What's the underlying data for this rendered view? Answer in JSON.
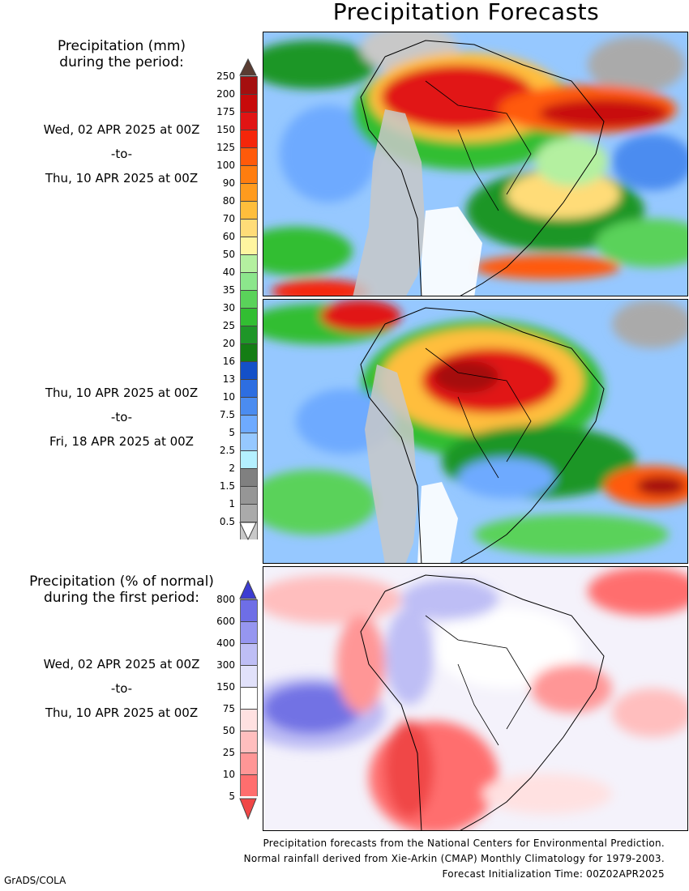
{
  "title": "Precipitation Forecasts",
  "legend_mm": {
    "title_line1": "Precipitation (mm)",
    "title_line2": "during the period:",
    "levels": [
      "250",
      "200",
      "175",
      "150",
      "125",
      "100",
      "90",
      "80",
      "70",
      "60",
      "50",
      "40",
      "35",
      "30",
      "25",
      "20",
      "16",
      "13",
      "10",
      "7.5",
      "5",
      "2.5",
      "2",
      "1.5",
      "1",
      "0.5"
    ],
    "colors": [
      "#8b1a10",
      "#a50f0f",
      "#c80a0a",
      "#e11414",
      "#f5260a",
      "#ff5a0a",
      "#ff7d0f",
      "#ff9b1e",
      "#ffbe3c",
      "#ffdc78",
      "#fff5a0",
      "#b4f0a0",
      "#8ce68c",
      "#5ad25a",
      "#32be32",
      "#1e9628",
      "#147d14",
      "#1450c8",
      "#2d6ee1",
      "#4b8cf0",
      "#6eaaff",
      "#96c8ff",
      "#b4f0ff",
      "#808080",
      "#969696",
      "#aaaaaa",
      "#c8c8c8"
    ],
    "top_arrow_color": "#5a3c32"
  },
  "period1": {
    "start": "Wed, 02 APR 2025 at 00Z",
    "sep": "-to-",
    "end": "Thu, 10 APR 2025 at 00Z"
  },
  "period2": {
    "start": "Thu, 10 APR 2025 at 00Z",
    "sep": "-to-",
    "end": "Fri, 18 APR 2025 at 00Z"
  },
  "legend_pct": {
    "title_line1": "Precipitation (% of normal)",
    "title_line2": "during the first period:",
    "levels": [
      "800",
      "600",
      "400",
      "300",
      "150",
      "75",
      "50",
      "25",
      "10",
      "5"
    ],
    "colors": [
      "#3c3cd2",
      "#6e6ee6",
      "#9696f0",
      "#bebef5",
      "#e1e1fa",
      "#ffffff",
      "#ffe1e1",
      "#ffbebe",
      "#ff9696",
      "#ff6e6e",
      "#f04646"
    ]
  },
  "period3": {
    "start": "Wed, 02 APR 2025 at 00Z",
    "sep": "-to-",
    "end": "Thu, 10 APR 2025 at 00Z"
  },
  "footer": {
    "line1": "Precipitation forecasts from the National Centers for Environmental Prediction.",
    "line2": "Normal rainfall derived from Xie-Arkin (CMAP) Monthly Climatology for 1979-2003.",
    "line3": "Forecast Initialization Time: 00Z02APR2025"
  },
  "credit": "GrADS/COLA"
}
